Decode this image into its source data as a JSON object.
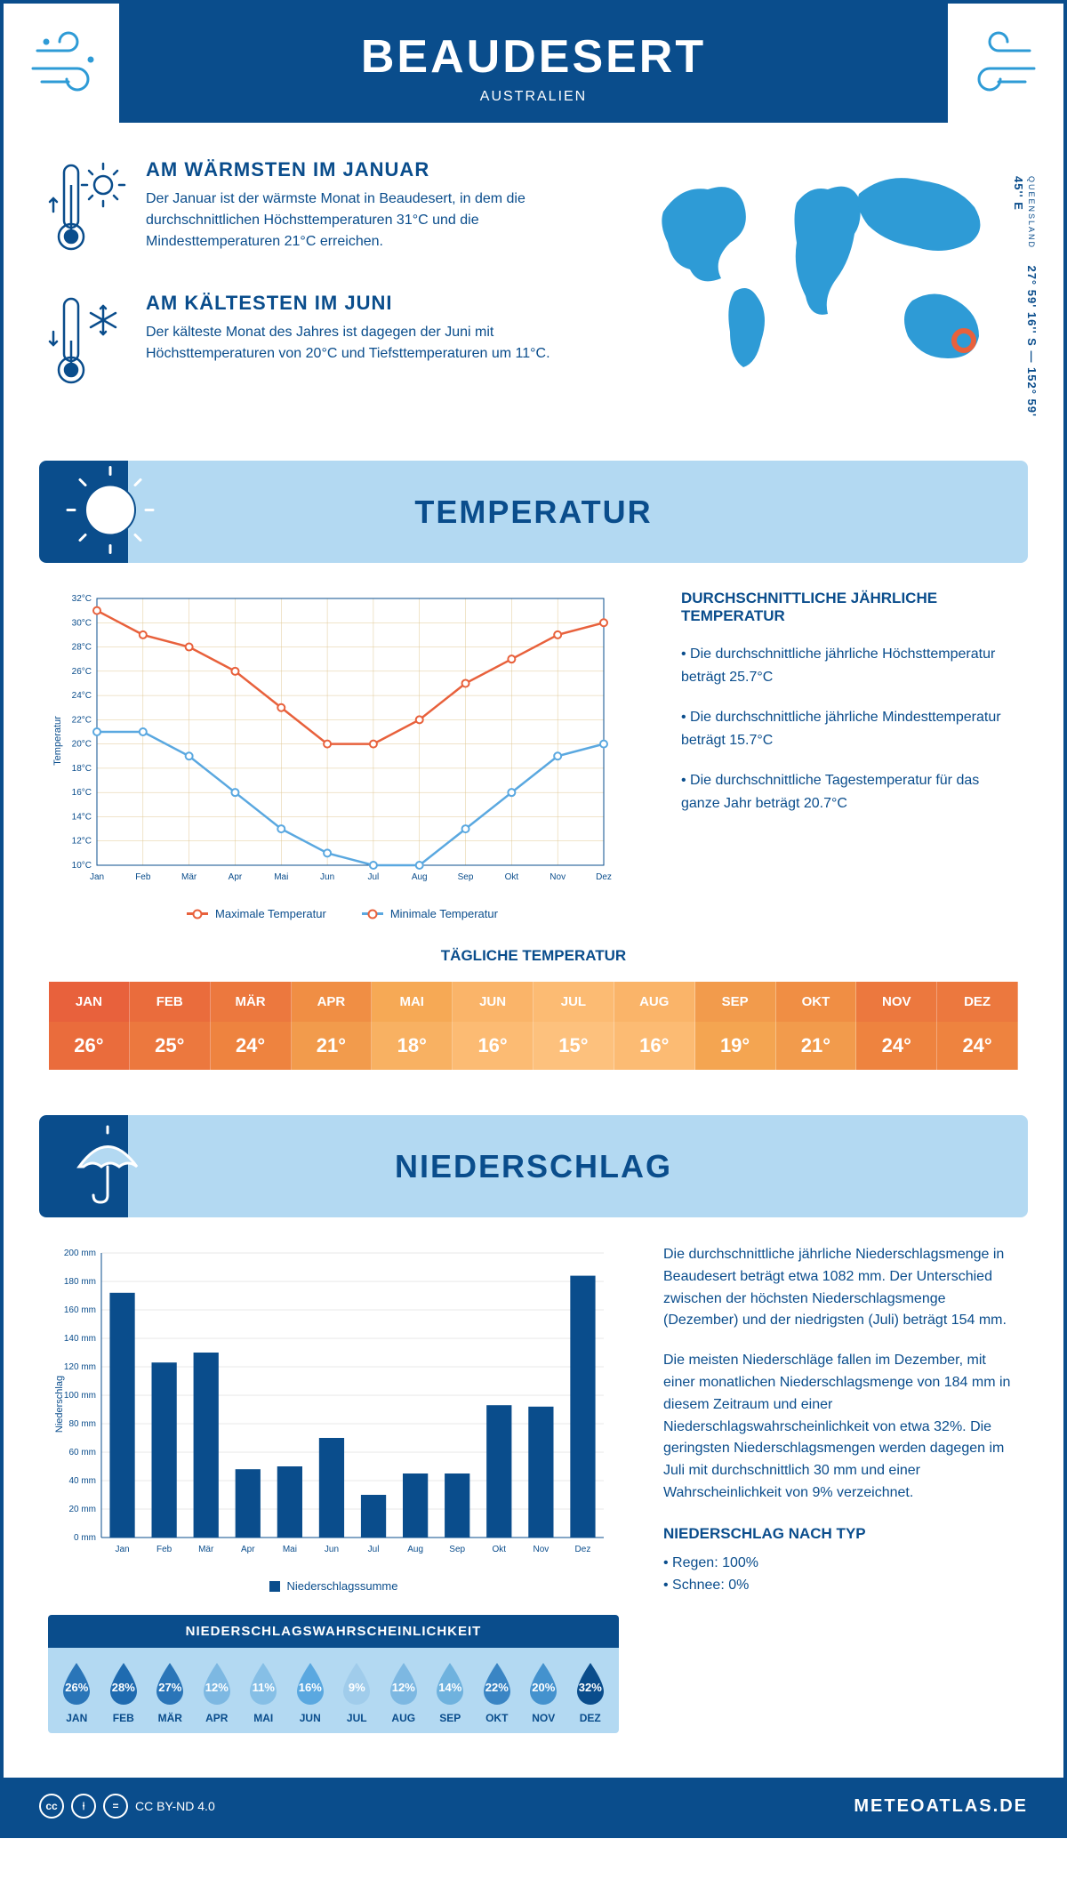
{
  "header": {
    "title": "BEAUDESERT",
    "subtitle": "AUSTRALIEN"
  },
  "location": {
    "coords": "27° 59' 16'' S — 152° 59' 45'' E",
    "region": "QUEENSLAND"
  },
  "facts": {
    "warm": {
      "title": "AM WÄRMSTEN IM JANUAR",
      "text": "Der Januar ist der wärmste Monat in Beaudesert, in dem die durchschnittlichen Höchsttemperaturen 31°C und die Mindesttemperaturen 21°C erreichen."
    },
    "cold": {
      "title": "AM KÄLTESTEN IM JUNI",
      "text": "Der kälteste Monat des Jahres ist dagegen der Juni mit Höchsttemperaturen von 20°C und Tiefsttemperaturen um 11°C."
    }
  },
  "sections": {
    "temp": "TEMPERATUR",
    "precip": "NIEDERSCHLAG"
  },
  "months": [
    "Jan",
    "Feb",
    "Mär",
    "Apr",
    "Mai",
    "Jun",
    "Jul",
    "Aug",
    "Sep",
    "Okt",
    "Nov",
    "Dez"
  ],
  "months_upper": [
    "JAN",
    "FEB",
    "MÄR",
    "APR",
    "MAI",
    "JUN",
    "JUL",
    "AUG",
    "SEP",
    "OKT",
    "NOV",
    "DEZ"
  ],
  "temp_chart": {
    "type": "line",
    "ylabel": "Temperatur",
    "ylim": [
      10,
      32
    ],
    "ytick_step": 2,
    "ytick_suffix": "°C",
    "max_series": {
      "label": "Maximale Temperatur",
      "color": "#e8613c",
      "values": [
        31,
        29,
        28,
        26,
        23,
        20,
        20,
        22,
        25,
        27,
        29,
        30
      ]
    },
    "min_series": {
      "label": "Minimale Temperatur",
      "color": "#5aa8e0",
      "values": [
        21,
        21,
        19,
        16,
        13,
        11,
        10,
        10,
        13,
        16,
        19,
        20
      ]
    },
    "grid_color": "#e0c896",
    "axis_color": "#0a4d8c"
  },
  "temp_annual": {
    "title": "DURCHSCHNITTLICHE JÄHRLICHE TEMPERATUR",
    "p1": "• Die durchschnittliche jährliche Höchsttemperatur beträgt 25.7°C",
    "p2": "• Die durchschnittliche jährliche Mindesttemperatur beträgt 15.7°C",
    "p3": "• Die durchschnittliche Tagestemperatur für das ganze Jahr beträgt 20.7°C"
  },
  "daily_temp": {
    "title": "TÄGLICHE TEMPERATUR",
    "values": [
      "26°",
      "25°",
      "24°",
      "21°",
      "18°",
      "16°",
      "15°",
      "16°",
      "19°",
      "21°",
      "24°",
      "24°"
    ],
    "head_colors": [
      "#e8613c",
      "#ea6c3c",
      "#ec783e",
      "#f08e44",
      "#f6a955",
      "#fab469",
      "#fcbb73",
      "#fab469",
      "#f29b4c",
      "#f08e44",
      "#ec783e",
      "#ec783e"
    ],
    "val_colors": [
      "#ea6c3c",
      "#ec783e",
      "#ee833f",
      "#f29b4c",
      "#f8b162",
      "#fcbb73",
      "#fdc17d",
      "#fcbb73",
      "#f4a551",
      "#f29b4c",
      "#ee833f",
      "#ee833f"
    ]
  },
  "precip_chart": {
    "type": "bar",
    "ylabel": "Niederschlag",
    "ylim": [
      0,
      200
    ],
    "ytick_step": 20,
    "ytick_suffix": " mm",
    "values": [
      172,
      123,
      130,
      48,
      50,
      70,
      30,
      45,
      45,
      93,
      92,
      184
    ],
    "bar_color": "#0a4d8c",
    "grid_color": "#d0d0d0",
    "legend": "Niederschlagssumme"
  },
  "precip_text": {
    "p1": "Die durchschnittliche jährliche Niederschlagsmenge in Beaudesert beträgt etwa 1082 mm. Der Unterschied zwischen der höchsten Niederschlagsmenge (Dezember) und der niedrigsten (Juli) beträgt 154 mm.",
    "p2": "Die meisten Niederschläge fallen im Dezember, mit einer monatlichen Niederschlagsmenge von 184 mm in diesem Zeitraum und einer Niederschlagswahrscheinlichkeit von etwa 32%. Die geringsten Niederschlagsmengen werden dagegen im Juli mit durchschnittlich 30 mm und einer Wahrscheinlichkeit von 9% verzeichnet.",
    "type_title": "NIEDERSCHLAG NACH TYP",
    "type_rain": "• Regen: 100%",
    "type_snow": "• Schnee: 0%"
  },
  "precip_prob": {
    "title": "NIEDERSCHLAGSWAHRSCHEINLICHKEIT",
    "values": [
      "26%",
      "28%",
      "27%",
      "12%",
      "11%",
      "16%",
      "9%",
      "12%",
      "14%",
      "22%",
      "20%",
      "32%"
    ],
    "colors": [
      "#2a75b8",
      "#1f6bb0",
      "#2a75b8",
      "#7db8e2",
      "#86bfe6",
      "#5aa8e0",
      "#a0cceb",
      "#7db8e2",
      "#6fb2de",
      "#3a85c4",
      "#4492ce",
      "#0a4d8c"
    ]
  },
  "footer": {
    "license": "CC BY-ND 4.0",
    "site": "METEOATLAS.DE"
  },
  "colors": {
    "primary": "#0a4d8c",
    "light": "#b3d9f2",
    "accent": "#2e9bd6"
  }
}
